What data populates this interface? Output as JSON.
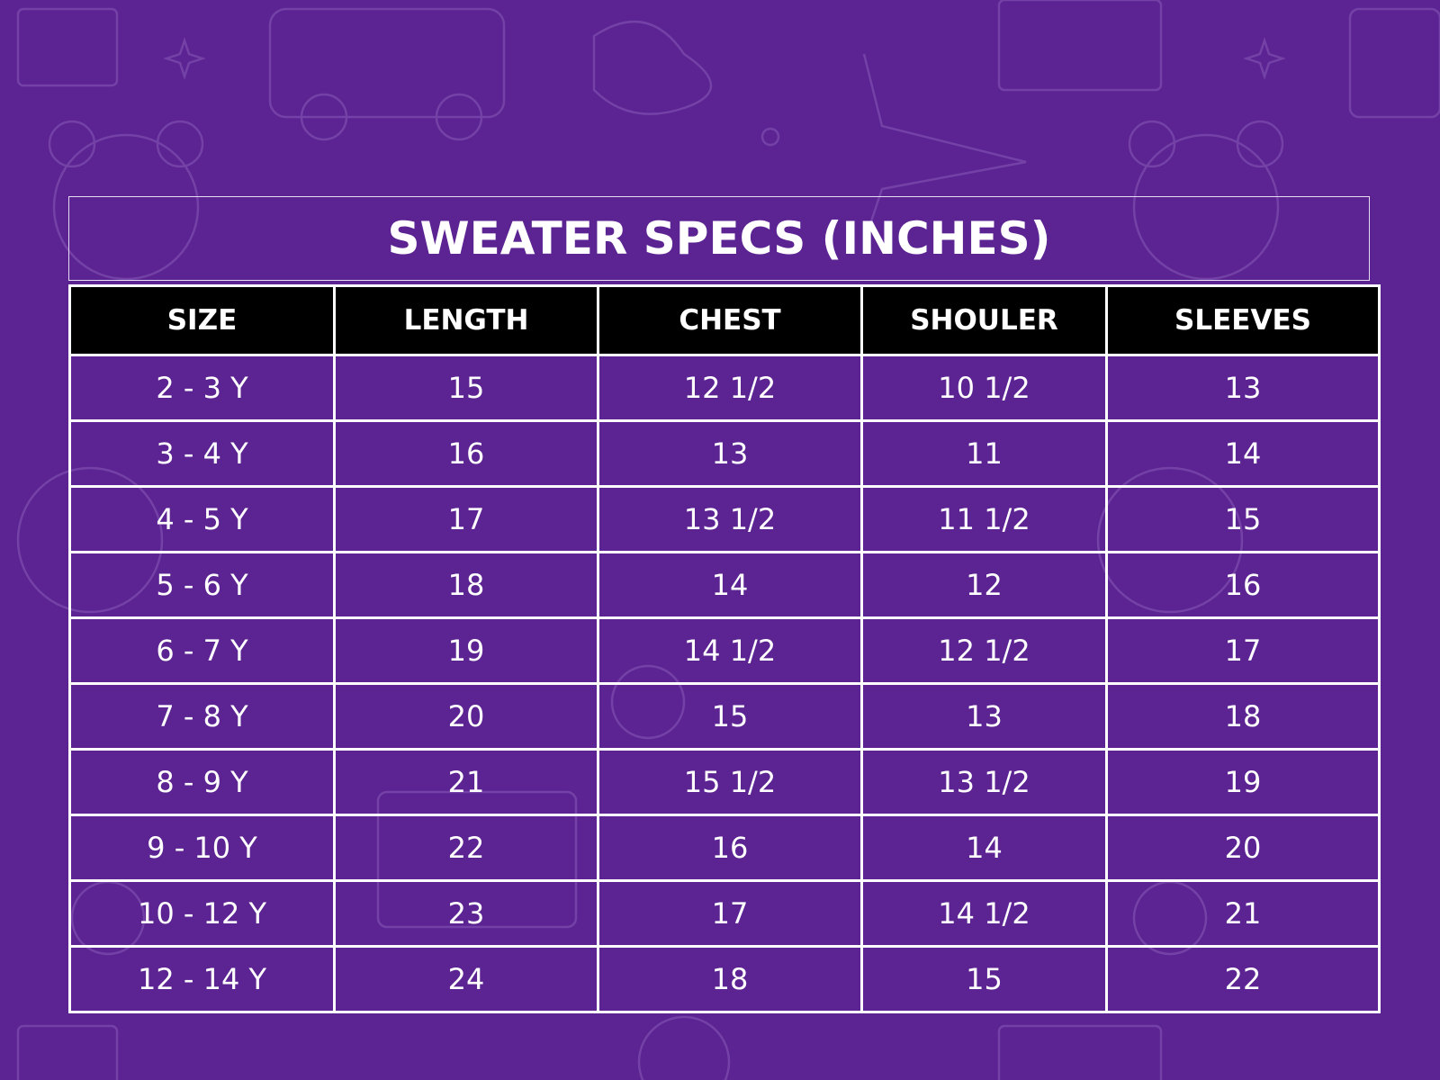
{
  "header": {
    "title": "SWEATER SPECS (INCHES)"
  },
  "table": {
    "columns": [
      "SIZE",
      "LENGTH",
      "CHEST",
      "SHOULER",
      "SLEEVES"
    ],
    "rows": [
      [
        "2 - 3 Y",
        "15",
        "12 1/2",
        "10 1/2",
        "13"
      ],
      [
        "3 - 4 Y",
        "16",
        "13",
        "11",
        "14"
      ],
      [
        "4 - 5 Y",
        "17",
        "13 1/2",
        "11 1/2",
        "15"
      ],
      [
        "5 - 6 Y",
        "18",
        "14",
        "12",
        "16"
      ],
      [
        "6 - 7 Y",
        "19",
        "14 1/2",
        "12 1/2",
        "17"
      ],
      [
        "7 - 8 Y",
        "20",
        "15",
        "13",
        "18"
      ],
      [
        "8 - 9 Y",
        "21",
        "15 1/2",
        "13 1/2",
        "19"
      ],
      [
        "9 - 10 Y",
        "22",
        "16",
        "14",
        "20"
      ],
      [
        "10 - 12 Y",
        "23",
        "17",
        "14 1/2",
        "21"
      ],
      [
        "12 - 14 Y",
        "24",
        "18",
        "15",
        "22"
      ]
    ]
  }
}
